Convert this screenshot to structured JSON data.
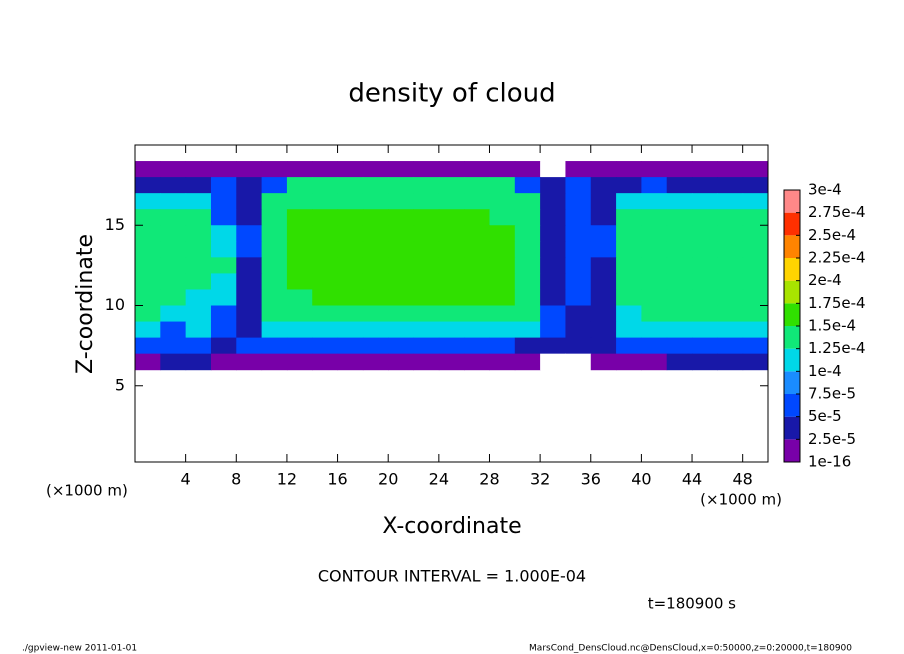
{
  "chart_data": {
    "type": "contour",
    "title": "density of cloud",
    "xlabel": "X-coordinate",
    "ylabel": "Z-coordinate",
    "x_unit_left": "(×1000 m)",
    "x_unit_right": "(×1000 m)",
    "contour_note": "CONTOUR INTERVAL = 1.000E-04",
    "time_note": "t=180900 s",
    "footer_left": "./gpview-new  2011-01-01",
    "footer_right": "MarsCond_DensCloud.nc@DensCloud,x=0:50000,z=0:20000,t=180900",
    "xlim": [
      0,
      50
    ],
    "ylim": [
      0.25,
      20
    ],
    "xticks": [
      4,
      8,
      12,
      16,
      20,
      24,
      28,
      32,
      36,
      40,
      44,
      48
    ],
    "yticks": [
      5,
      10,
      15
    ],
    "x": [
      1,
      3,
      5,
      7,
      9,
      11,
      13,
      15,
      17,
      19,
      21,
      23,
      25,
      27,
      29,
      31,
      33,
      35,
      37,
      39,
      41,
      43,
      45,
      47,
      49
    ],
    "z": [
      18.5,
      17.5,
      16.5,
      15.5,
      14.5,
      13.5,
      12.5,
      11.5,
      10.5,
      9.5,
      8.5,
      7.5,
      6.5
    ],
    "values": [
      [
        1e-05,
        1e-05,
        1e-05,
        1e-05,
        1e-05,
        1e-05,
        1e-05,
        1e-05,
        1e-05,
        1e-05,
        1e-05,
        1e-05,
        1e-05,
        1e-05,
        1e-05,
        1e-05,
        0,
        1e-05,
        1e-05,
        1e-05,
        1e-05,
        1e-05,
        1e-05,
        1e-05,
        1e-05
      ],
      [
        3.5e-05,
        3.5e-05,
        3.5e-05,
        6e-05,
        3.5e-05,
        6e-05,
        0.000135,
        0.000135,
        0.000135,
        0.000135,
        0.000135,
        0.000135,
        0.000135,
        0.000135,
        0.000135,
        6e-05,
        3.5e-05,
        6e-05,
        3.5e-05,
        3.5e-05,
        6e-05,
        3.5e-05,
        3.5e-05,
        3.5e-05,
        3.5e-05
      ],
      [
        0.00011,
        0.00011,
        0.00011,
        6e-05,
        3.5e-05,
        0.000135,
        0.000135,
        0.000135,
        0.000135,
        0.000135,
        0.000135,
        0.000135,
        0.000135,
        0.000135,
        0.000135,
        0.000135,
        3.5e-05,
        6e-05,
        3.5e-05,
        0.00011,
        0.00011,
        0.00011,
        0.00011,
        0.00011,
        0.00011
      ],
      [
        0.000135,
        0.000135,
        0.000135,
        6e-05,
        3.5e-05,
        0.000135,
        0.00016,
        0.00016,
        0.00016,
        0.00016,
        0.00016,
        0.00016,
        0.00016,
        0.00016,
        0.000135,
        0.000135,
        3.5e-05,
        6e-05,
        3.5e-05,
        0.000135,
        0.000135,
        0.000135,
        0.000135,
        0.000135,
        0.000135
      ],
      [
        0.000135,
        0.000135,
        0.000135,
        0.00011,
        6e-05,
        0.000135,
        0.00016,
        0.00016,
        0.00016,
        0.00016,
        0.00016,
        0.00016,
        0.00016,
        0.00016,
        0.00016,
        0.000135,
        3.5e-05,
        6e-05,
        6e-05,
        0.000135,
        0.000135,
        0.000135,
        0.000135,
        0.000135,
        0.000135
      ],
      [
        0.000135,
        0.000135,
        0.000135,
        0.00011,
        6e-05,
        0.000135,
        0.00016,
        0.00016,
        0.00016,
        0.00016,
        0.00016,
        0.00016,
        0.00016,
        0.00016,
        0.00016,
        0.000135,
        3.5e-05,
        6e-05,
        6e-05,
        0.000135,
        0.000135,
        0.000135,
        0.000135,
        0.000135,
        0.000135
      ],
      [
        0.000135,
        0.000135,
        0.000135,
        0.000135,
        3.5e-05,
        0.000135,
        0.00016,
        0.00016,
        0.00016,
        0.00016,
        0.00016,
        0.00016,
        0.00016,
        0.00016,
        0.00016,
        0.000135,
        3.5e-05,
        6e-05,
        3.5e-05,
        0.000135,
        0.000135,
        0.000135,
        0.000135,
        0.000135,
        0.000135
      ],
      [
        0.000135,
        0.000135,
        0.000135,
        0.00011,
        3.5e-05,
        0.000135,
        0.00016,
        0.00016,
        0.00016,
        0.00016,
        0.00016,
        0.00016,
        0.00016,
        0.00016,
        0.00016,
        0.000135,
        3.5e-05,
        6e-05,
        3.5e-05,
        0.000135,
        0.000135,
        0.000135,
        0.000135,
        0.000135,
        0.000135
      ],
      [
        0.000135,
        0.000135,
        0.00011,
        0.00011,
        3.5e-05,
        0.000135,
        0.000135,
        0.00016,
        0.00016,
        0.00016,
        0.00016,
        0.00016,
        0.00016,
        0.00016,
        0.00016,
        0.000135,
        3.5e-05,
        6e-05,
        3.5e-05,
        0.000135,
        0.000135,
        0.000135,
        0.000135,
        0.000135,
        0.000135
      ],
      [
        0.000135,
        0.00011,
        0.00011,
        6e-05,
        3.5e-05,
        0.000135,
        0.000135,
        0.000135,
        0.000135,
        0.000135,
        0.000135,
        0.000135,
        0.000135,
        0.000135,
        0.000135,
        0.000135,
        6e-05,
        3.5e-05,
        3.5e-05,
        0.00011,
        0.000135,
        0.000135,
        0.000135,
        0.000135,
        0.000135
      ],
      [
        0.00011,
        6e-05,
        0.00011,
        6e-05,
        3.5e-05,
        0.00011,
        0.00011,
        0.00011,
        0.00011,
        0.00011,
        0.00011,
        0.00011,
        0.00011,
        0.00011,
        0.00011,
        0.00011,
        6e-05,
        3.5e-05,
        3.5e-05,
        0.00011,
        0.00011,
        0.00011,
        0.00011,
        0.00011,
        0.00011
      ],
      [
        6e-05,
        6e-05,
        6e-05,
        3.5e-05,
        6e-05,
        6e-05,
        6e-05,
        6e-05,
        6e-05,
        6e-05,
        6e-05,
        6e-05,
        6e-05,
        6e-05,
        6e-05,
        3.5e-05,
        3.5e-05,
        3.5e-05,
        3.5e-05,
        6e-05,
        6e-05,
        6e-05,
        6e-05,
        6e-05,
        6e-05
      ],
      [
        1e-05,
        3.5e-05,
        3.5e-05,
        1e-05,
        1e-05,
        1e-05,
        1e-05,
        1e-05,
        1e-05,
        1e-05,
        1e-05,
        1e-05,
        1e-05,
        1e-05,
        1e-05,
        1e-05,
        0,
        0,
        1e-05,
        1e-05,
        1e-05,
        3.5e-05,
        3.5e-05,
        3.5e-05,
        3.5e-05
      ]
    ],
    "colorbar_ticks": [
      {
        "value": 1e-16,
        "label": "1e-16"
      },
      {
        "value": 2.5e-05,
        "label": "2.5e-5"
      },
      {
        "value": 5e-05,
        "label": "5e-5"
      },
      {
        "value": 7.5e-05,
        "label": "7.5e-5"
      },
      {
        "value": 0.0001,
        "label": "1e-4"
      },
      {
        "value": 0.000125,
        "label": "1.25e-4"
      },
      {
        "value": 0.00015,
        "label": "1.5e-4"
      },
      {
        "value": 0.000175,
        "label": "1.75e-4"
      },
      {
        "value": 0.0002,
        "label": "2e-4"
      },
      {
        "value": 0.000225,
        "label": "2.25e-4"
      },
      {
        "value": 0.00025,
        "label": "2.5e-4"
      },
      {
        "value": 0.000275,
        "label": "2.75e-4"
      },
      {
        "value": 0.0003,
        "label": "3e-4"
      }
    ],
    "colorbar_colors": [
      "#7800a8",
      "#1818a8",
      "#0048ff",
      "#1a8cff",
      "#00d8e8",
      "#10e878",
      "#30e000",
      "#a8e400",
      "#ffd400",
      "#ff8400",
      "#ff3000",
      "#ff8888"
    ]
  }
}
